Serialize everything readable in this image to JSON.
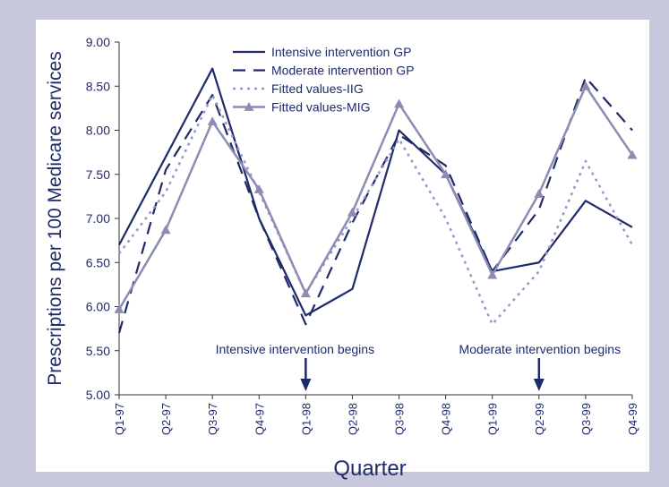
{
  "chart_data": {
    "type": "line",
    "xlabel": "Quarter",
    "ylabel": "Prescriptions per 100 Medicare services",
    "ylim": [
      5.0,
      9.0
    ],
    "yticks": [
      "5.00",
      "5.50",
      "6.00",
      "6.50",
      "7.00",
      "7.50",
      "8.00",
      "8.50",
      "9.00"
    ],
    "categories": [
      "Q1-97",
      "Q2-97",
      "Q3-97",
      "Q4-97",
      "Q1-98",
      "Q2-98",
      "Q3-98",
      "Q4-98",
      "Q1-99",
      "Q2-99",
      "Q3-99",
      "Q4-99"
    ],
    "grid": false,
    "legend_position": "top-center",
    "series": [
      {
        "name": "Intensive intervention GP",
        "style": "solid",
        "color": "#1f2a6b",
        "values": [
          6.7,
          7.7,
          8.7,
          7.0,
          5.9,
          6.2,
          8.0,
          7.5,
          6.4,
          6.5,
          7.2,
          6.9
        ]
      },
      {
        "name": "Moderate intervention GP",
        "style": "dashed",
        "color": "#1f2a6b",
        "values": [
          5.7,
          7.55,
          8.4,
          7.0,
          5.8,
          6.95,
          7.95,
          7.6,
          6.4,
          7.1,
          8.6,
          8.0
        ]
      },
      {
        "name": "Fitted values-IIG",
        "style": "dotted",
        "color": "#9a96cc",
        "values": [
          6.6,
          7.3,
          8.4,
          7.3,
          6.15,
          7.0,
          7.9,
          7.0,
          5.8,
          6.4,
          7.65,
          6.7
        ]
      },
      {
        "name": "Fitted values-MIG",
        "style": "solid-triangle",
        "color": "#8c8cb4",
        "values": [
          5.97,
          6.87,
          8.1,
          7.33,
          6.15,
          7.07,
          8.3,
          7.5,
          6.36,
          7.28,
          8.5,
          7.72
        ]
      }
    ],
    "annotations": [
      {
        "text": "Intensive intervention begins",
        "category": "Q1-98"
      },
      {
        "text": "Moderate intervention begins",
        "category": "Q2-99"
      }
    ]
  }
}
